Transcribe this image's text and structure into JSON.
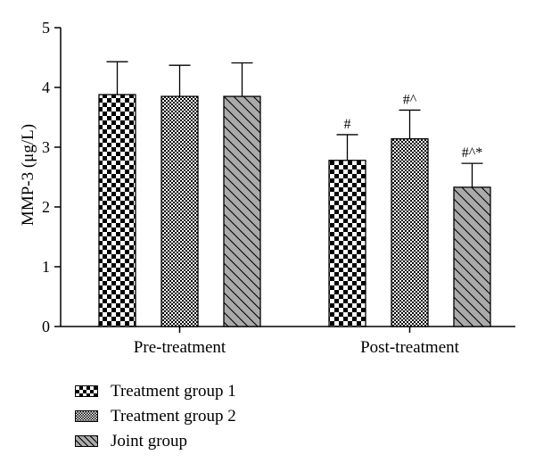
{
  "chart_data": {
    "type": "bar",
    "title": "",
    "xlabel": "",
    "ylabel": "MMP-3 (μg/L)",
    "ylim": [
      0,
      5
    ],
    "yticks": [
      "0",
      "1",
      "2",
      "3",
      "4",
      "5"
    ],
    "categories": [
      "Pre-treatment",
      "Post-treatment"
    ],
    "grid": false,
    "legend_position": "bottom-left",
    "series": [
      {
        "name": "Treatment group 1",
        "pattern": "checker-large",
        "values": [
          3.88,
          2.78
        ],
        "errors": [
          0.55,
          0.43
        ],
        "annotations": [
          "",
          "#"
        ]
      },
      {
        "name": "Treatment group 2",
        "pattern": "checker-small",
        "values": [
          3.85,
          3.14
        ],
        "errors": [
          0.52,
          0.48
        ],
        "annotations": [
          "",
          "#^"
        ]
      },
      {
        "name": "Joint group",
        "pattern": "diagonal-hatch",
        "values": [
          3.85,
          2.33
        ],
        "errors": [
          0.56,
          0.4
        ],
        "annotations": [
          "",
          "#^*"
        ]
      }
    ],
    "colors": {
      "bar_fill": "#000000",
      "hatch_bg": "#aaaaaa",
      "axis": "#000000"
    }
  }
}
